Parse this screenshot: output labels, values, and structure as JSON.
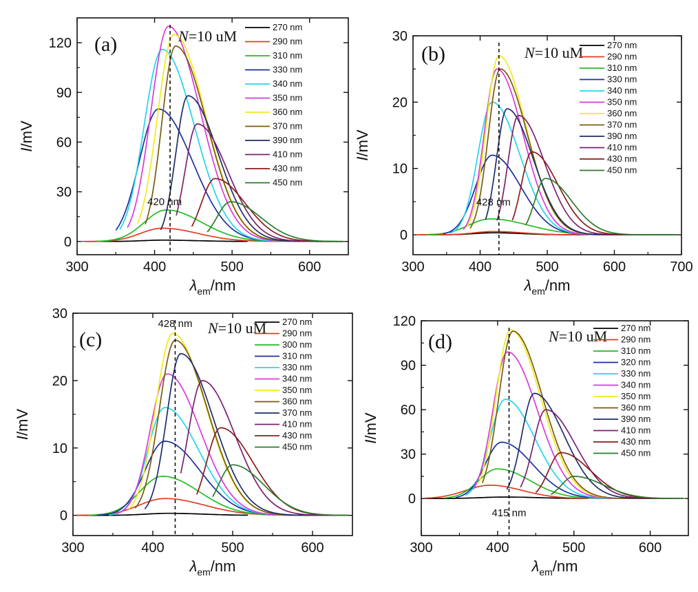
{
  "figure": {
    "background": "#ffffff"
  },
  "chart_data": [
    {
      "type": "line",
      "panel_label": "(a)",
      "concentration": {
        "italic": "N",
        "rest": "=10  uM"
      },
      "xlabel": {
        "symbol": "λ",
        "sub": "em",
        "unit": "/nm"
      },
      "ylabel": {
        "italic": "I",
        "unit": "/mV"
      },
      "xlim": [
        300,
        650
      ],
      "ylim": [
        -8,
        135
      ],
      "xticks": [
        300,
        400,
        500,
        600
      ],
      "yticks": [
        0,
        30,
        60,
        90,
        120
      ],
      "peak_line_x": 420,
      "peak_label": "420 nm",
      "series": [
        {
          "name": "270 nm",
          "color": "#000000",
          "amp": 0.8,
          "center": 410,
          "start": 310,
          "end": 520,
          "wl": 35,
          "wr": 60
        },
        {
          "name": "290 nm",
          "color": "#e03c1e",
          "amp": 8,
          "center": 410,
          "start": 305,
          "end": 570,
          "wl": 40,
          "wr": 65
        },
        {
          "name": "310 nm",
          "color": "#22bb22",
          "amp": 19,
          "center": 415,
          "start": 325,
          "end": 600,
          "wl": 40,
          "wr": 65
        },
        {
          "name": "330 nm",
          "color": "#1a2f9c",
          "amp": 80,
          "center": 405,
          "start": 350,
          "end": 640,
          "wl": 35,
          "wr": 62
        },
        {
          "name": "340 nm",
          "color": "#22d4ee",
          "amp": 116,
          "center": 410,
          "start": 355,
          "end": 640,
          "wl": 33,
          "wr": 58
        },
        {
          "name": "350 nm",
          "color": "#d93ad9",
          "amp": 130,
          "center": 418,
          "start": 365,
          "end": 645,
          "wl": 32,
          "wr": 58
        },
        {
          "name": "360 nm",
          "color": "#f2ea1c",
          "amp": 125,
          "center": 425,
          "start": 378,
          "end": 645,
          "wl": 30,
          "wr": 58
        },
        {
          "name": "370 nm",
          "color": "#7a5a10",
          "amp": 118,
          "center": 427,
          "start": 388,
          "end": 645,
          "wl": 25,
          "wr": 57
        },
        {
          "name": "390 nm",
          "color": "#1c2c6a",
          "amp": 88,
          "center": 443,
          "start": 408,
          "end": 645,
          "wl": 22,
          "wr": 55
        },
        {
          "name": "410 nm",
          "color": "#7a2070",
          "amp": 71,
          "center": 455,
          "start": 428,
          "end": 645,
          "wl": 22,
          "wr": 55
        },
        {
          "name": "430 nm",
          "color": "#8a1c1c",
          "amp": 38,
          "center": 478,
          "start": 448,
          "end": 645,
          "wl": 25,
          "wr": 55
        },
        {
          "name": "450 nm",
          "color": "#2a7a2a",
          "amp": 24,
          "center": 498,
          "start": 468,
          "end": 645,
          "wl": 25,
          "wr": 55
        }
      ]
    },
    {
      "type": "line",
      "panel_label": "(b)",
      "concentration": {
        "italic": "N",
        "rest": "=10  uM"
      },
      "xlabel": {
        "symbol": "λ",
        "sub": "em",
        "unit": "/nm"
      },
      "ylabel": {
        "italic": "I",
        "unit": "/mV"
      },
      "xlim": [
        300,
        700
      ],
      "ylim": [
        -3,
        30
      ],
      "xticks": [
        300,
        400,
        500,
        600,
        700
      ],
      "yticks": [
        0,
        10,
        20,
        30
      ],
      "peak_line_x": 428,
      "peak_label": "428 nm",
      "series": [
        {
          "name": "270 nm",
          "color": "#000000",
          "amp": 0.3,
          "center": 420,
          "start": 310,
          "end": 560,
          "wl": 40,
          "wr": 60
        },
        {
          "name": "290 nm",
          "color": "#e03c1e",
          "amp": 0.5,
          "center": 420,
          "start": 305,
          "end": 560,
          "wl": 40,
          "wr": 60
        },
        {
          "name": "310 nm",
          "color": "#22bb22",
          "amp": 2.4,
          "center": 415,
          "start": 320,
          "end": 640,
          "wl": 45,
          "wr": 80
        },
        {
          "name": "330 nm",
          "color": "#1a2f9c",
          "amp": 12,
          "center": 418,
          "start": 345,
          "end": 660,
          "wl": 35,
          "wr": 60
        },
        {
          "name": "340 nm",
          "color": "#22d4ee",
          "amp": 20,
          "center": 418,
          "start": 355,
          "end": 670,
          "wl": 30,
          "wr": 58
        },
        {
          "name": "350 nm",
          "color": "#d93ad9",
          "amp": 25,
          "center": 425,
          "start": 375,
          "end": 680,
          "wl": 27,
          "wr": 55
        },
        {
          "name": "360 nm",
          "color": "#f2ea1c",
          "amp": 27,
          "center": 428,
          "start": 380,
          "end": 685,
          "wl": 27,
          "wr": 57
        },
        {
          "name": "370 nm",
          "color": "#7a5a10",
          "amp": 25,
          "center": 430,
          "start": 385,
          "end": 688,
          "wl": 25,
          "wr": 57
        },
        {
          "name": "390 nm",
          "color": "#1c2c6a",
          "amp": 19,
          "center": 440,
          "start": 408,
          "end": 690,
          "wl": 22,
          "wr": 55
        },
        {
          "name": "410 nm",
          "color": "#7a2070",
          "amp": 18,
          "center": 457,
          "start": 425,
          "end": 695,
          "wl": 22,
          "wr": 55
        },
        {
          "name": "430 nm",
          "color": "#8a1c1c",
          "amp": 12.5,
          "center": 477,
          "start": 448,
          "end": 695,
          "wl": 22,
          "wr": 55
        },
        {
          "name": "450 nm",
          "color": "#2a7a2a",
          "amp": 8.5,
          "center": 497,
          "start": 468,
          "end": 695,
          "wl": 22,
          "wr": 55
        }
      ]
    },
    {
      "type": "line",
      "panel_label": "(c)",
      "concentration": {
        "italic": "N",
        "rest": "=10  uM"
      },
      "xlabel": {
        "symbol": "λ",
        "sub": "em",
        "unit": "/nm"
      },
      "ylabel": {
        "italic": "I",
        "unit": "/mV"
      },
      "xlim": [
        300,
        650
      ],
      "ylim": [
        -3,
        30
      ],
      "xticks": [
        300,
        400,
        500,
        600
      ],
      "yticks": [
        0,
        10,
        20,
        30
      ],
      "peak_line_x": 428,
      "peak_label": "428 nm",
      "series": [
        {
          "name": "270 nm",
          "color": "#000000",
          "amp": 0.3,
          "center": 420,
          "start": 305,
          "end": 520,
          "wl": 40,
          "wr": 60
        },
        {
          "name": "290 nm",
          "color": "#e03c1e",
          "amp": 2.5,
          "center": 415,
          "start": 305,
          "end": 560,
          "wl": 45,
          "wr": 70
        },
        {
          "name": "300 nm",
          "color": "#22bb22",
          "amp": 5.8,
          "center": 412,
          "start": 320,
          "end": 620,
          "wl": 40,
          "wr": 65
        },
        {
          "name": "310 nm",
          "color": "#1a2f9c",
          "amp": 11,
          "center": 415,
          "start": 330,
          "end": 640,
          "wl": 35,
          "wr": 62
        },
        {
          "name": "330 nm",
          "color": "#22d4ee",
          "amp": 16,
          "center": 415,
          "start": 345,
          "end": 645,
          "wl": 30,
          "wr": 60
        },
        {
          "name": "340 nm",
          "color": "#d93ad9",
          "amp": 21,
          "center": 418,
          "start": 355,
          "end": 645,
          "wl": 30,
          "wr": 58
        },
        {
          "name": "350 nm",
          "color": "#f2ea1c",
          "amp": 27,
          "center": 425,
          "start": 370,
          "end": 645,
          "wl": 30,
          "wr": 58
        },
        {
          "name": "360 nm",
          "color": "#7a5a10",
          "amp": 26,
          "center": 428,
          "start": 378,
          "end": 645,
          "wl": 28,
          "wr": 57
        },
        {
          "name": "370 nm",
          "color": "#1c2c6a",
          "amp": 24,
          "center": 435,
          "start": 390,
          "end": 645,
          "wl": 25,
          "wr": 57
        },
        {
          "name": "410 nm",
          "color": "#7a2070",
          "amp": 20,
          "center": 462,
          "start": 435,
          "end": 645,
          "wl": 25,
          "wr": 57
        },
        {
          "name": "430 nm",
          "color": "#8a1c1c",
          "amp": 13,
          "center": 485,
          "start": 455,
          "end": 645,
          "wl": 25,
          "wr": 57
        },
        {
          "name": "450 nm",
          "color": "#2a7a2a",
          "amp": 7.5,
          "center": 500,
          "start": 475,
          "end": 645,
          "wl": 25,
          "wr": 55
        }
      ]
    },
    {
      "type": "line",
      "panel_label": "(d)",
      "concentration": {
        "italic": "N",
        "rest": "=10  uM"
      },
      "xlabel": {
        "symbol": "λ",
        "sub": "em",
        "unit": "/nm"
      },
      "ylabel": {
        "italic": "I",
        "unit": "/mV"
      },
      "xlim": [
        300,
        650
      ],
      "ylim": [
        -25,
        120
      ],
      "xticks": [
        300,
        400,
        500,
        600
      ],
      "yticks": [
        0,
        30,
        60,
        90,
        120
      ],
      "peak_line_x": 415,
      "peak_label": "415 nm",
      "series": [
        {
          "name": "270 nm",
          "color": "#000000",
          "amp": 1,
          "center": 410,
          "start": 305,
          "end": 520,
          "wl": 45,
          "wr": 60
        },
        {
          "name": "290 nm",
          "color": "#e03c1e",
          "amp": 9,
          "center": 390,
          "start": 305,
          "end": 520,
          "wl": 45,
          "wr": 60
        },
        {
          "name": "310 nm",
          "color": "#22bb22",
          "amp": 20,
          "center": 400,
          "start": 330,
          "end": 580,
          "wl": 35,
          "wr": 60
        },
        {
          "name": "320 nm",
          "color": "#1a2f9c",
          "amp": 38,
          "center": 405,
          "start": 345,
          "end": 620,
          "wl": 30,
          "wr": 58
        },
        {
          "name": "330 nm",
          "color": "#22d4ee",
          "amp": 67,
          "center": 410,
          "start": 358,
          "end": 640,
          "wl": 28,
          "wr": 55
        },
        {
          "name": "340 nm",
          "color": "#d93ad9",
          "amp": 99,
          "center": 413,
          "start": 368,
          "end": 645,
          "wl": 27,
          "wr": 55
        },
        {
          "name": "350 nm",
          "color": "#f2ea1c",
          "amp": 114,
          "center": 417,
          "start": 375,
          "end": 645,
          "wl": 27,
          "wr": 55
        },
        {
          "name": "360 nm",
          "color": "#7a5a10",
          "amp": 113,
          "center": 420,
          "start": 380,
          "end": 645,
          "wl": 26,
          "wr": 55
        },
        {
          "name": "390 nm",
          "color": "#1c2c6a",
          "amp": 71,
          "center": 448,
          "start": 412,
          "end": 645,
          "wl": 23,
          "wr": 55
        },
        {
          "name": "410 nm",
          "color": "#7a2070",
          "amp": 60,
          "center": 463,
          "start": 430,
          "end": 645,
          "wl": 23,
          "wr": 55
        },
        {
          "name": "430 nm",
          "color": "#8a1c1c",
          "amp": 31,
          "center": 483,
          "start": 450,
          "end": 645,
          "wl": 23,
          "wr": 55
        },
        {
          "name": "450 nm",
          "color": "#2a7a2a",
          "amp": 15,
          "center": 500,
          "start": 470,
          "end": 645,
          "wl": 23,
          "wr": 55
        }
      ]
    }
  ]
}
